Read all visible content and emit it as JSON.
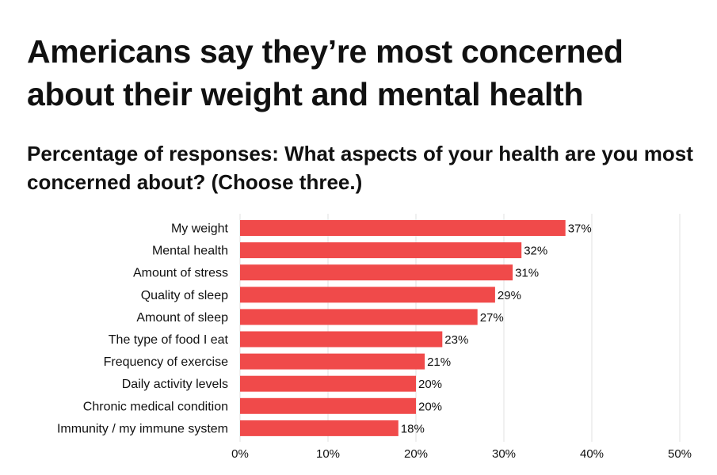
{
  "title": "Americans say they’re most concerned about their weight and mental health",
  "subtitle": "Percentage of responses: What aspects of your health are you most concerned about? (Choose three.)",
  "chart_data": {
    "type": "bar",
    "orientation": "horizontal",
    "categories": [
      "My weight",
      "Mental health",
      "Amount of stress",
      "Quality of sleep",
      "Amount of sleep",
      "The type of food I eat",
      "Frequency of exercise",
      "Daily activity levels",
      "Chronic medical condition",
      "Immunity / my immune system"
    ],
    "values": [
      37,
      32,
      31,
      29,
      27,
      23,
      21,
      20,
      20,
      18
    ],
    "value_labels": [
      "37%",
      "32%",
      "31%",
      "29%",
      "27%",
      "23%",
      "21%",
      "20%",
      "20%",
      "18%"
    ],
    "xlim": [
      0,
      50
    ],
    "xticks": [
      0,
      10,
      20,
      30,
      40,
      50
    ],
    "xtick_labels": [
      "0%",
      "10%",
      "20%",
      "30%",
      "40%",
      "50%"
    ],
    "grid": "vertical",
    "bar_color": "#f04a4a",
    "grid_color": "#e2e2e2",
    "text_color": "#111111"
  }
}
